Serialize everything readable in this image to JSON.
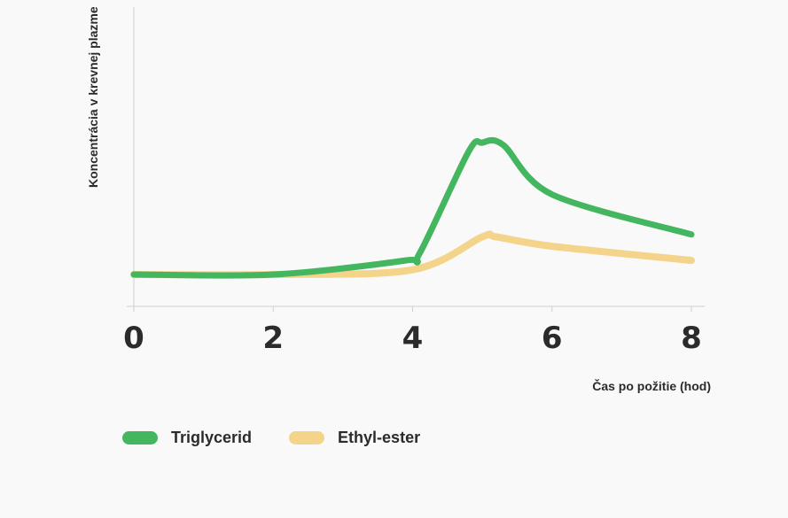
{
  "chart_data": {
    "type": "line",
    "xlabel": "Čas po požitie (hod)",
    "ylabel": "Koncentrácia v krevnej plazme",
    "x_ticks": [
      "0",
      "2",
      "4",
      "6",
      "8"
    ],
    "xlim": [
      0,
      8
    ],
    "ylim": [
      0,
      10
    ],
    "grid": false,
    "legend_position": "bottom-left",
    "series": [
      {
        "name": "Triglycerid",
        "color": "#45b660",
        "points": [
          [
            0,
            0.6
          ],
          [
            2,
            0.6
          ],
          [
            3.9,
            1.2
          ],
          [
            4.1,
            1.5
          ],
          [
            4.8,
            5.8
          ],
          [
            5.0,
            6.2
          ],
          [
            5.3,
            6.1
          ],
          [
            6.0,
            4.0
          ],
          [
            8.0,
            2.3
          ]
        ]
      },
      {
        "name": "Ethyl-ester",
        "color": "#f3d48a",
        "points": [
          [
            0,
            0.6
          ],
          [
            2,
            0.6
          ],
          [
            4.0,
            0.8
          ],
          [
            5.0,
            2.2
          ],
          [
            5.2,
            2.2
          ],
          [
            6.0,
            1.8
          ],
          [
            8.0,
            1.2
          ]
        ]
      }
    ]
  }
}
